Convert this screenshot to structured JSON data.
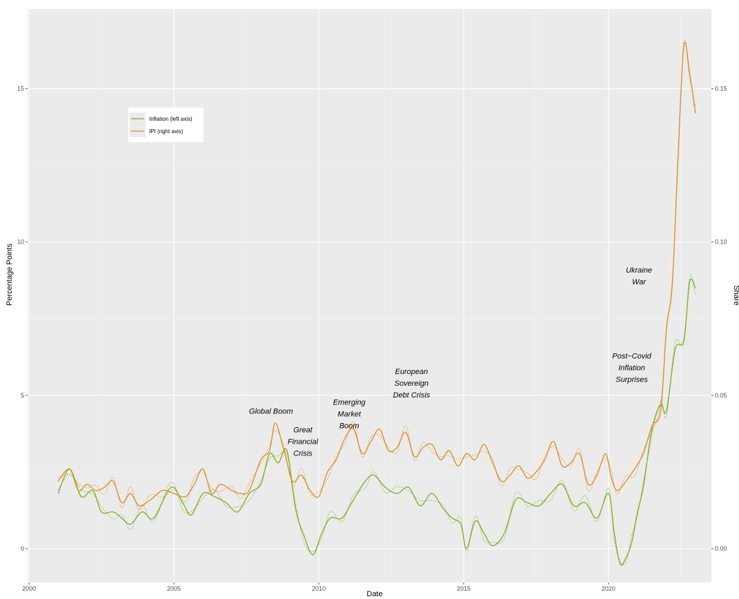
{
  "chart_data": {
    "type": "line",
    "title": "",
    "xlabel": "Date",
    "ylabel_left": "Percentage Points",
    "ylabel_right": "Share",
    "xlim": [
      1999.95,
      2023.55
    ],
    "ylim_left": [
      -1.1,
      17.6
    ],
    "ylim_right": [
      -0.011,
      0.176
    ],
    "x_ticks": [
      2000,
      2005,
      2010,
      2015,
      2020
    ],
    "x_tick_labels": [
      "2000",
      "2005",
      "2010",
      "2015",
      "2020"
    ],
    "y_left_ticks": [
      0,
      5,
      10,
      15
    ],
    "y_left_tick_labels": [
      "0",
      "5",
      "10",
      "15"
    ],
    "y_right_ticks": [
      0,
      0.05,
      0.1,
      0.15
    ],
    "y_right_tick_labels": [
      "0.00",
      "0.05",
      "0.10",
      "0.15"
    ],
    "grid": true,
    "legend_position": "top-left",
    "series": [
      {
        "name": "Inflation (left axis)",
        "axis": "left",
        "color": "#7cae1e",
        "x": [
          2001.0,
          2001.4,
          2001.8,
          2002.2,
          2002.5,
          2002.9,
          2003.2,
          2003.5,
          2003.9,
          2004.3,
          2004.9,
          2005.3,
          2005.6,
          2006.0,
          2006.4,
          2006.8,
          2007.2,
          2007.6,
          2008.0,
          2008.3,
          2008.6,
          2008.9,
          2009.2,
          2009.5,
          2009.8,
          2010.1,
          2010.4,
          2010.8,
          2011.2,
          2011.6,
          2011.9,
          2012.3,
          2012.7,
          2013.1,
          2013.5,
          2013.9,
          2014.3,
          2014.6,
          2014.9,
          2015.1,
          2015.4,
          2015.7,
          2016.0,
          2016.4,
          2016.8,
          2017.2,
          2017.6,
          2018.0,
          2018.4,
          2018.8,
          2019.2,
          2019.6,
          2020.0,
          2020.2,
          2020.4,
          2020.6,
          2020.8,
          2021.0,
          2021.2,
          2021.5,
          2021.8,
          2022.0,
          2022.3,
          2022.6,
          2022.8,
          2023.0
        ],
        "y": [
          1.8,
          2.6,
          1.7,
          1.9,
          1.2,
          1.2,
          1.0,
          0.8,
          1.2,
          1.0,
          2.0,
          1.5,
          1.1,
          1.8,
          1.7,
          1.5,
          1.2,
          1.8,
          2.1,
          3.1,
          2.8,
          3.2,
          1.3,
          0.4,
          -0.2,
          0.5,
          1.0,
          1.0,
          1.6,
          2.2,
          2.4,
          2.0,
          1.8,
          2.0,
          1.4,
          1.8,
          1.3,
          1.0,
          0.8,
          0.0,
          0.9,
          0.5,
          0.1,
          0.5,
          1.6,
          1.5,
          1.4,
          1.8,
          2.1,
          1.4,
          1.5,
          1.0,
          1.8,
          0.5,
          -0.5,
          -0.3,
          0.2,
          1.2,
          2.0,
          3.9,
          4.7,
          4.5,
          6.5,
          6.8,
          8.7,
          8.5
        ]
      },
      {
        "name": "IPI (right axis)",
        "axis": "right",
        "color": "#e08a1f",
        "x": [
          2001.0,
          2001.4,
          2001.7,
          2002.0,
          2002.3,
          2002.6,
          2002.9,
          2003.2,
          2003.5,
          2003.8,
          2004.2,
          2004.6,
          2005.0,
          2005.4,
          2005.7,
          2006.0,
          2006.3,
          2006.6,
          2007.0,
          2007.3,
          2007.6,
          2008.0,
          2008.3,
          2008.5,
          2008.8,
          2009.1,
          2009.4,
          2009.7,
          2010.0,
          2010.3,
          2010.6,
          2010.9,
          2011.2,
          2011.5,
          2011.8,
          2012.1,
          2012.4,
          2012.7,
          2013.0,
          2013.3,
          2013.6,
          2013.9,
          2014.2,
          2014.5,
          2014.8,
          2015.1,
          2015.4,
          2015.7,
          2016.0,
          2016.3,
          2016.6,
          2016.9,
          2017.2,
          2017.5,
          2017.8,
          2018.1,
          2018.4,
          2018.7,
          2019.0,
          2019.3,
          2019.6,
          2019.9,
          2020.1,
          2020.3,
          2020.6,
          2020.9,
          2021.2,
          2021.5,
          2021.8,
          2022.0,
          2022.2,
          2022.4,
          2022.6,
          2022.8,
          2023.0
        ],
        "y": [
          0.022,
          0.026,
          0.019,
          0.021,
          0.019,
          0.02,
          0.022,
          0.015,
          0.018,
          0.014,
          0.016,
          0.019,
          0.018,
          0.017,
          0.021,
          0.026,
          0.018,
          0.021,
          0.019,
          0.018,
          0.019,
          0.029,
          0.032,
          0.041,
          0.032,
          0.022,
          0.024,
          0.019,
          0.017,
          0.025,
          0.029,
          0.036,
          0.039,
          0.031,
          0.035,
          0.039,
          0.032,
          0.033,
          0.038,
          0.03,
          0.033,
          0.034,
          0.029,
          0.032,
          0.027,
          0.031,
          0.029,
          0.034,
          0.028,
          0.022,
          0.024,
          0.027,
          0.023,
          0.025,
          0.029,
          0.035,
          0.027,
          0.028,
          0.031,
          0.021,
          0.024,
          0.031,
          0.023,
          0.019,
          0.022,
          0.026,
          0.031,
          0.04,
          0.045,
          0.072,
          0.086,
          0.128,
          0.164,
          0.155,
          0.142
        ]
      }
    ],
    "annotations": [
      {
        "lines": [
          "Global Boom"
        ],
        "x": 2008.35,
        "y": 4.4
      },
      {
        "lines": [
          "Great",
          "Financial",
          "Crisis"
        ],
        "x": 2009.45,
        "y": 3.8
      },
      {
        "lines": [
          "Emerging",
          "Market",
          "Boom"
        ],
        "x": 2011.05,
        "y": 4.7
      },
      {
        "lines": [
          "European",
          "Sovereign",
          "Debt Crisis"
        ],
        "x": 2013.2,
        "y": 5.7
      },
      {
        "lines": [
          "Post−Covid",
          "Inflation",
          "Surprises"
        ],
        "x": 2020.8,
        "y": 6.2
      },
      {
        "lines": [
          "Ukraine",
          "War"
        ],
        "x": 2021.05,
        "y": 9.0
      }
    ]
  }
}
